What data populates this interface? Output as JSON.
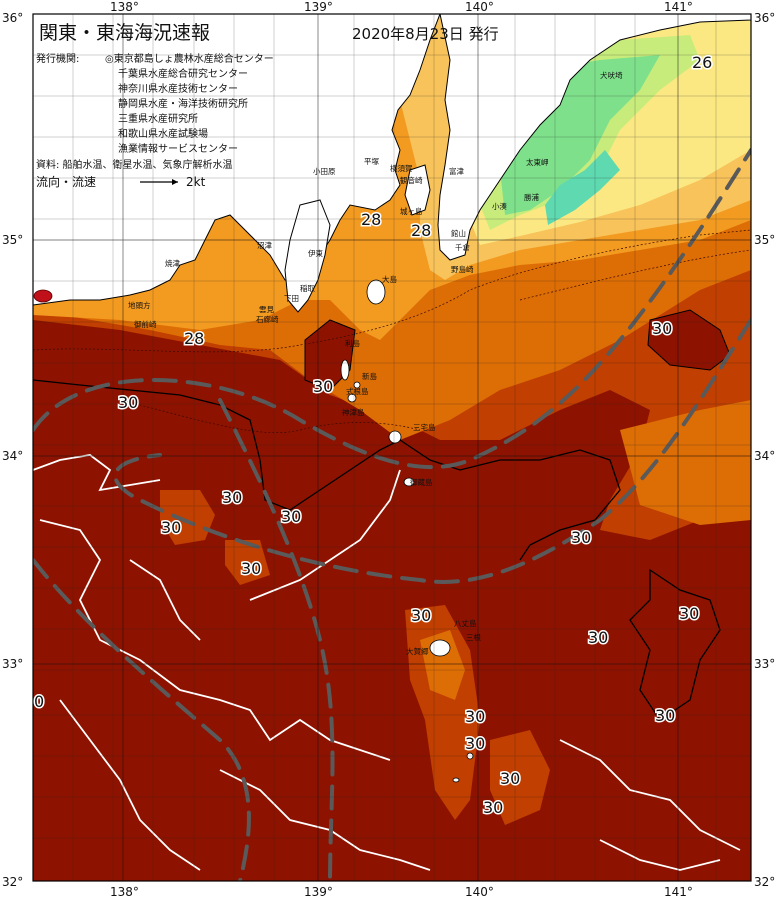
{
  "title": "関東・東海海況速報",
  "date": "2020年8月23日 発行",
  "issuer": {
    "label": "発行機関:",
    "agencies": [
      "◎東京都島しょ農林水産総合センター",
      "千葉県水産総合研究センター",
      "神奈川県水産技術センター",
      "静岡県水産・海洋技術研究所",
      "三重県水産研究所",
      "和歌山県水産試験場",
      "漁業情報サービスセンター"
    ]
  },
  "source": "資料: 船舶水温、衛星水温、気象庁解析水温",
  "flow_legend": {
    "label": "流向・流速",
    "value": "2kt"
  },
  "axes": {
    "lon_ticks": [
      "138°",
      "139°",
      "140°",
      "141°"
    ],
    "lat_ticks": [
      "36°",
      "35°",
      "34°",
      "33°",
      "32°"
    ]
  },
  "temperature_labels": [
    "26",
    "28",
    "28",
    "28",
    "30",
    "30",
    "30",
    "30",
    "30",
    "30",
    "30",
    "30",
    "30",
    "30",
    "30",
    "30",
    "30",
    "30",
    "30",
    "30",
    "0"
  ],
  "place_names": [
    "犬吠埼",
    "太東岬",
    "勝浦",
    "小湊",
    "館山",
    "千倉",
    "野島崎",
    "富津",
    "観音崎",
    "城ヶ島",
    "横須賀",
    "平塚",
    "小田原",
    "伊東",
    "大島",
    "稲取",
    "下田",
    "石廊崎",
    "雲見",
    "沼津",
    "焼津",
    "御前崎",
    "地頭方",
    "利島",
    "新島",
    "式根島",
    "神津島",
    "三宅島",
    "御蔵島",
    "八丈島",
    "三根",
    "大賀郷"
  ],
  "colors": {
    "land": "#ffffff",
    "sea_30_plus": "#8e1200",
    "sea_29": "#c13f00",
    "sea_28": "#dd6d05",
    "sea_27": "#f39a20",
    "sea_26": "#f8c35a",
    "sea_25": "#fbe883",
    "sea_24": "#c8ec7c",
    "sea_23": "#7ee08b",
    "sea_22": "#5ed9b0",
    "current_axis": "#5a5a5a"
  }
}
